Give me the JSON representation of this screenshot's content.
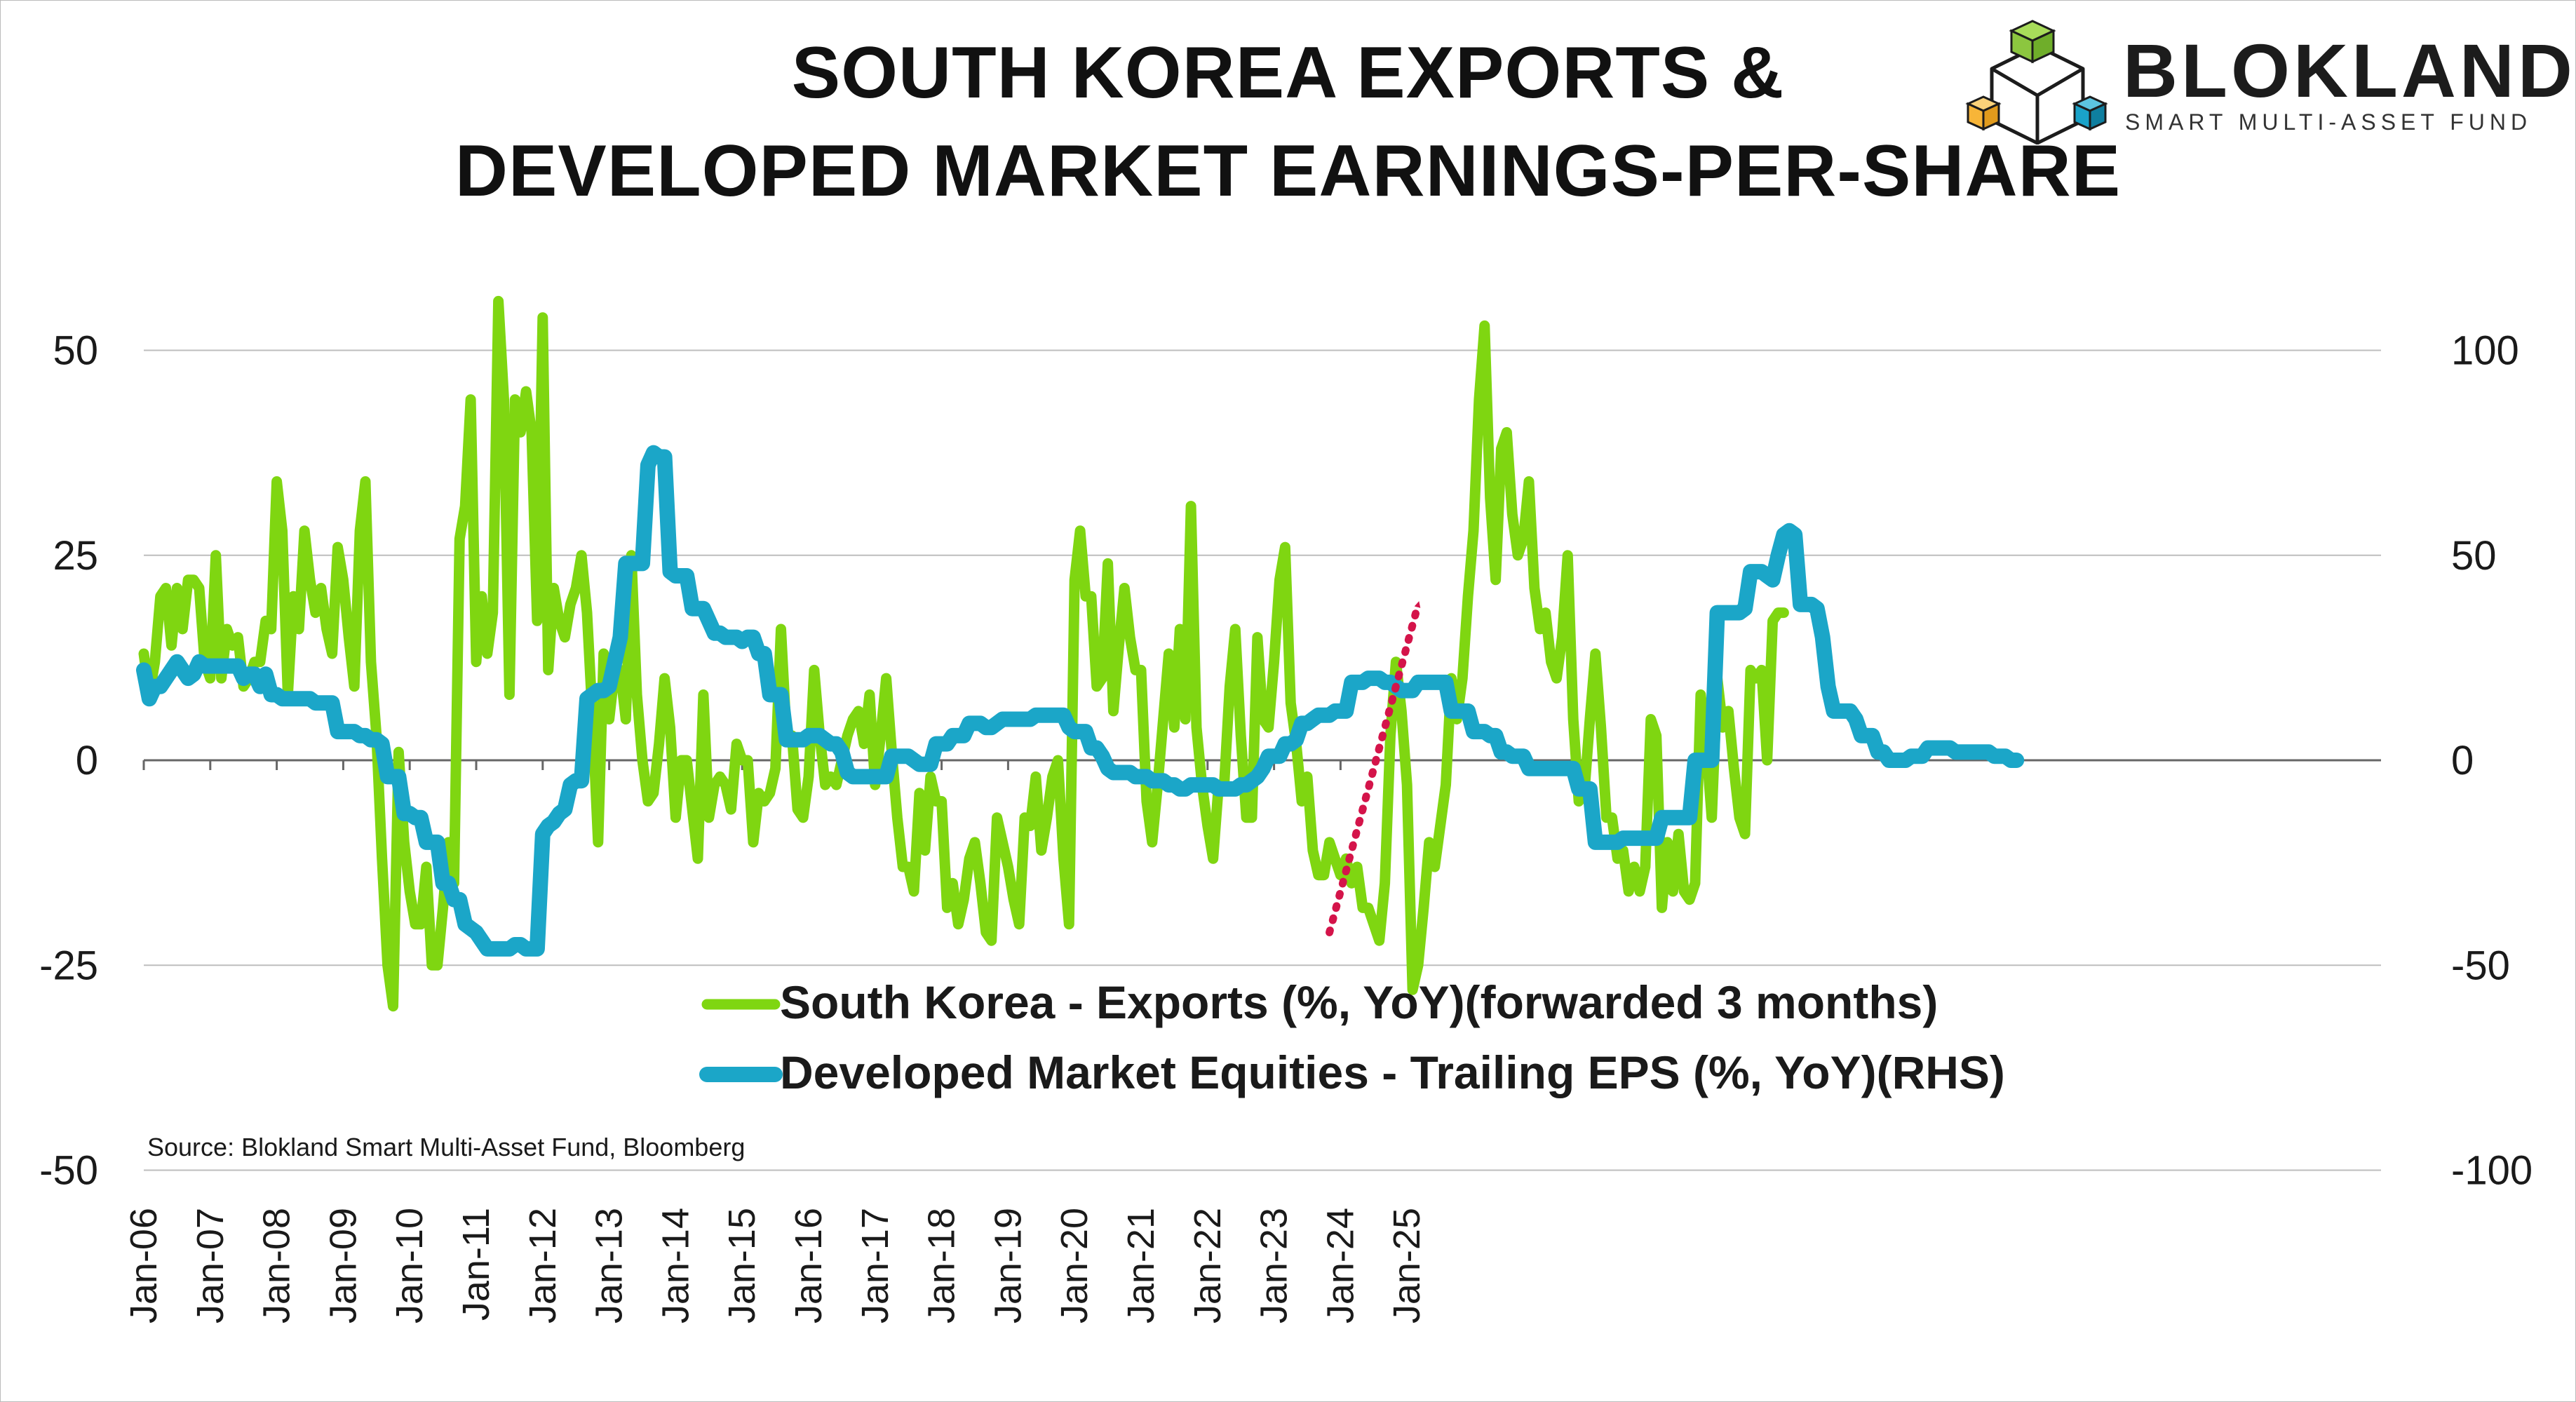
{
  "title": {
    "line1": "SOUTH KOREA EXPORTS &",
    "line2": "DEVELOPED MARKET EARNINGS-PER-SHARE"
  },
  "logo": {
    "name": "BLOKLAND",
    "tagline": "SMART MULTI-ASSET FUND",
    "icon": "cube-logo-icon",
    "colors": {
      "green": "#8cc63f",
      "yellow": "#f7b538",
      "blue": "#1aa3c9",
      "dark": "#1c1c1c"
    }
  },
  "source": "Source: Blokland Smart Multi-Asset Fund, Bloomberg",
  "chart_data": {
    "type": "line",
    "x_start": "Jan-06",
    "x_frequency": "monthly",
    "x_tick_labels": [
      "Jan-06",
      "Jan-07",
      "Jan-08",
      "Jan-09",
      "Jan-10",
      "Jan-11",
      "Jan-12",
      "Jan-13",
      "Jan-14",
      "Jan-15",
      "Jan-16",
      "Jan-17",
      "Jan-18",
      "Jan-19",
      "Jan-20",
      "Jan-21",
      "Jan-22",
      "Jan-23",
      "Jan-24",
      "Jan-25"
    ],
    "y_left": {
      "ticks": [
        "50",
        "25",
        "0",
        "-25",
        "-50"
      ],
      "range": [
        -50,
        50
      ]
    },
    "y_right": {
      "ticks": [
        "100",
        "50",
        "0",
        "-50",
        "-100"
      ],
      "range": [
        -100,
        100
      ]
    },
    "grid": "horizontal",
    "legend_position": "bottom-right",
    "series": [
      {
        "name": "South Korea - Exports (%, YoY)(forwarded 3 months)",
        "axis": "left",
        "color": "#7fd611",
        "values": [
          13,
          8,
          12,
          20,
          21,
          14,
          21,
          16,
          22,
          22,
          21,
          12,
          10,
          25,
          10,
          16,
          14,
          15,
          9,
          10,
          12,
          12,
          17,
          16,
          34,
          28,
          8,
          20,
          16,
          28,
          22,
          18,
          21,
          16,
          13,
          26,
          22,
          15,
          9,
          28,
          34,
          12,
          3,
          -12,
          -25,
          -30,
          1,
          -10,
          -16,
          -20,
          -20,
          -13,
          -25,
          -25,
          -18,
          -10,
          -15,
          27,
          31,
          44,
          12,
          20,
          13,
          18,
          56,
          44,
          8,
          44,
          40,
          45,
          40,
          17,
          54,
          11,
          21,
          17,
          15,
          19,
          21,
          25,
          18,
          5,
          -10,
          13,
          5,
          11,
          11,
          5,
          25,
          8,
          0,
          -5,
          -4,
          2,
          10,
          4,
          -7,
          0,
          0,
          -6,
          -12,
          8,
          -7,
          -3,
          -2,
          -3,
          -6,
          2,
          0,
          0,
          -10,
          -4,
          -5,
          -4,
          -1,
          16,
          3,
          3,
          -6,
          -7,
          -2,
          11,
          3,
          -3,
          -2,
          -3,
          0,
          3,
          5,
          6,
          2,
          8,
          -3,
          3,
          10,
          1,
          -7,
          -13,
          -13,
          -16,
          -4,
          -11,
          -2,
          -5,
          -5,
          -18,
          -15,
          -20,
          -17,
          -12,
          -10,
          -15,
          -21,
          -22,
          -7,
          -10,
          -13,
          -17,
          -20,
          -7,
          -8,
          -2,
          -11,
          -7,
          -2,
          0,
          -12,
          -20,
          22,
          28,
          20,
          20,
          9,
          10,
          24,
          6,
          14,
          21,
          15,
          11,
          11,
          -5,
          -10,
          -3,
          5,
          13,
          4,
          16,
          5,
          31,
          4,
          -3,
          -8,
          -12,
          -3,
          -3,
          9,
          16,
          3,
          -7,
          -7,
          15,
          5,
          4,
          12,
          22,
          26,
          7,
          2,
          -5,
          -2,
          -11,
          -14,
          -14,
          -10,
          -12,
          -14,
          -12,
          -15,
          -13,
          -18,
          -18,
          -20,
          -22,
          -15,
          3,
          12,
          6,
          -3,
          -28,
          -25,
          -18,
          -10,
          -13,
          -8,
          -3,
          10,
          5,
          10,
          20,
          28,
          44,
          53,
          32,
          22,
          38,
          40,
          30,
          25,
          27,
          34,
          21,
          16,
          18,
          12,
          10,
          15,
          25,
          5,
          -5,
          -4,
          5,
          13,
          4,
          -7,
          -7,
          -12,
          -11,
          -16,
          -13,
          -16,
          -13,
          5,
          3,
          -18,
          -10,
          -16,
          -9,
          -16,
          -17,
          -15,
          8,
          2,
          -7,
          10,
          4,
          6,
          -1,
          -7,
          -9,
          11,
          10,
          11,
          0,
          17,
          18,
          18
        ],
        "note": "dotted red arrow drawn from about -21 in Nov-23 up to about 19 in Mar-25"
      },
      {
        "name": "Developed Market Equities - Trailing EPS (%, YoY)(RHS)",
        "axis": "right",
        "color": "#1ba6c8",
        "values": [
          22,
          15,
          18,
          18,
          20,
          22,
          24,
          22,
          20,
          21,
          24,
          23,
          23,
          23,
          23,
          23,
          23,
          23,
          20,
          21,
          21,
          18,
          21,
          16,
          16,
          15,
          15,
          15,
          15,
          15,
          15,
          14,
          14,
          14,
          14,
          7,
          7,
          7,
          7,
          6,
          6,
          5,
          5,
          4,
          -4,
          -4,
          -4,
          -13,
          -13,
          -14,
          -14,
          -20,
          -20,
          -20,
          -30,
          -30,
          -34,
          -34,
          -40,
          -41,
          -42,
          -44,
          -46,
          -46,
          -46,
          -46,
          -46,
          -45,
          -45,
          -46,
          -46,
          -46,
          -18,
          -16,
          -15,
          -13,
          -12,
          -6,
          -5,
          -5,
          15,
          16,
          17,
          17,
          18,
          24,
          30,
          48,
          48,
          48,
          48,
          72,
          75,
          74,
          74,
          46,
          45,
          45,
          45,
          37,
          37,
          37,
          34,
          31,
          31,
          30,
          30,
          30,
          29,
          30,
          30,
          26,
          26,
          16,
          16,
          16,
          5,
          5,
          5,
          5,
          6,
          6,
          6,
          5,
          4,
          4,
          2,
          -3,
          -4,
          -4,
          -4,
          -4,
          -4,
          -4,
          -4,
          1,
          1,
          1,
          1,
          0,
          -1,
          -1,
          -1,
          4,
          4,
          4,
          6,
          6,
          6,
          9,
          9,
          9,
          8,
          8,
          9,
          10,
          10,
          10,
          10,
          10,
          10,
          11,
          11,
          11,
          11,
          11,
          11,
          8,
          7,
          7,
          7,
          3,
          3,
          1,
          -2,
          -3,
          -3,
          -3,
          -3,
          -4,
          -4,
          -4,
          -5,
          -5,
          -5,
          -6,
          -6,
          -7,
          -7,
          -6,
          -6,
          -6,
          -6,
          -6,
          -7,
          -7,
          -7,
          -7,
          -6,
          -6,
          -5,
          -4,
          -2,
          1,
          1,
          1,
          4,
          4,
          5,
          9,
          9,
          10,
          11,
          11,
          11,
          12,
          12,
          12,
          19,
          19,
          19,
          20,
          20,
          20,
          19,
          19,
          18,
          17,
          17,
          17,
          19,
          19,
          19,
          19,
          19,
          19,
          12,
          12,
          12,
          12,
          7,
          7,
          7,
          6,
          6,
          2,
          2,
          1,
          1,
          1,
          -2,
          -2,
          -2,
          -2,
          -2,
          -2,
          -2,
          -2,
          -2,
          -7,
          -7,
          -7,
          -20,
          -20,
          -20,
          -20,
          -20,
          -19,
          -19,
          -19,
          -19,
          -19,
          -19,
          -19,
          -14,
          -14,
          -14,
          -14,
          -14,
          -14,
          0,
          0,
          0,
          0,
          36,
          36,
          36,
          36,
          36,
          37,
          46,
          46,
          46,
          45,
          44,
          50,
          55,
          56,
          55,
          38,
          38,
          38,
          37,
          30,
          18,
          12,
          12,
          12,
          12,
          10,
          6,
          6,
          6,
          2,
          2,
          0,
          0,
          0,
          0,
          1,
          1,
          1,
          3,
          3,
          3,
          3,
          3,
          2,
          2,
          2,
          2,
          2,
          2,
          2,
          1,
          1,
          1,
          0,
          0
        ]
      }
    ]
  }
}
